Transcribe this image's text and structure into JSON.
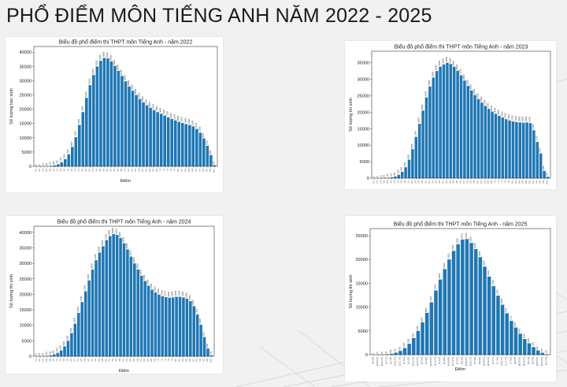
{
  "page": {
    "title": "PHỔ ĐIỂM MÔN TIẾNG ANH NĂM 2022 - 2025"
  },
  "colors": {
    "bar": "#1f77b4",
    "background": "#f1f1f1"
  },
  "chart_data": [
    {
      "type": "bar",
      "title": "Biểu đồ phổ điểm thi THPT môn Tiếng Anh - năm 2022",
      "xlabel": "Điểm",
      "ylabel": "Số lượng học sinh",
      "ylim": [
        0,
        42000
      ],
      "yticks": [
        0,
        5000,
        10000,
        15000,
        20000,
        25000,
        30000,
        35000,
        40000
      ],
      "grid": false,
      "categories": [
        "0.0",
        "0.2",
        "0.4",
        "0.6",
        "0.8",
        "1.0",
        "1.2",
        "1.4",
        "1.6",
        "1.8",
        "2.0",
        "2.2",
        "2.4",
        "2.6",
        "2.8",
        "3.0",
        "3.2",
        "3.4",
        "3.6",
        "3.8",
        "4.0",
        "4.2",
        "4.4",
        "4.6",
        "4.8",
        "5.0",
        "5.2",
        "5.4",
        "5.6",
        "5.8",
        "6.0",
        "6.2",
        "6.4",
        "6.6",
        "6.8",
        "7.0",
        "7.2",
        "7.4",
        "7.6",
        "7.8",
        "8.0",
        "8.2",
        "8.4",
        "8.6",
        "8.8",
        "9.0",
        "9.2",
        "9.4",
        "9.6",
        "9.8",
        "10.0"
      ],
      "values": [
        6,
        5,
        25,
        60,
        150,
        350,
        700,
        1400,
        2500,
        4200,
        6800,
        10200,
        14500,
        19000,
        24000,
        28500,
        32000,
        35000,
        37000,
        38000,
        37800,
        36800,
        35200,
        33500,
        31700,
        29800,
        28000,
        26500,
        25000,
        23600,
        22400,
        21400,
        20500,
        19700,
        19000,
        18400,
        17800,
        17200,
        16600,
        16100,
        15600,
        15200,
        14800,
        14500,
        14000,
        13100,
        11800,
        9800,
        7200,
        3900,
        400
      ]
    },
    {
      "type": "bar",
      "title": "Biểu đồ phổ điểm thi THPT môn Tiếng Anh - năm 2023",
      "xlabel": "Điểm",
      "ylabel": "Số lượng thí sinh",
      "ylim": [
        0,
        38500
      ],
      "yticks": [
        0,
        5000,
        10000,
        15000,
        20000,
        25000,
        30000,
        35000
      ],
      "grid": false,
      "categories": [
        "0.0",
        "0.2",
        "0.4",
        "0.6",
        "0.8",
        "1.0",
        "1.2",
        "1.4",
        "1.6",
        "1.8",
        "2.0",
        "2.2",
        "2.4",
        "2.6",
        "2.8",
        "3.0",
        "3.2",
        "3.4",
        "3.6",
        "3.8",
        "4.0",
        "4.2",
        "4.4",
        "4.6",
        "4.8",
        "5.0",
        "5.2",
        "5.4",
        "5.6",
        "5.8",
        "6.0",
        "6.2",
        "6.4",
        "6.6",
        "6.8",
        "7.0",
        "7.2",
        "7.4",
        "7.6",
        "7.8",
        "8.0",
        "8.2",
        "8.4",
        "8.6",
        "8.8",
        "9.0",
        "9.2",
        "9.4",
        "9.6",
        "9.8",
        "10.0"
      ],
      "values": [
        3,
        6,
        20,
        50,
        100,
        250,
        500,
        1000,
        1900,
        3300,
        5600,
        8800,
        12500,
        16500,
        20500,
        24500,
        27800,
        30500,
        32500,
        33800,
        34500,
        35000,
        34600,
        33800,
        32600,
        31200,
        29600,
        28000,
        26600,
        25200,
        24000,
        22900,
        21900,
        21000,
        20200,
        19500,
        18900,
        18400,
        17900,
        17500,
        17200,
        17000,
        16900,
        16800,
        16900,
        16700,
        14500,
        11000,
        7500,
        2200,
        400
      ]
    },
    {
      "type": "bar",
      "title": "Biểu đồ phổ điểm thi THPT môn Tiếng Anh - năm 2024",
      "xlabel": "Điểm",
      "ylabel": "Số lượng thí sinh",
      "ylim": [
        0,
        42000
      ],
      "yticks": [
        0,
        5000,
        10000,
        15000,
        20000,
        25000,
        30000,
        35000,
        40000
      ],
      "grid": false,
      "categories": [
        "0.0",
        "0.2",
        "0.4",
        "0.6",
        "0.8",
        "1.0",
        "1.2",
        "1.4",
        "1.6",
        "1.8",
        "2.0",
        "2.2",
        "2.4",
        "2.6",
        "2.8",
        "3.0",
        "3.2",
        "3.4",
        "3.6",
        "3.8",
        "4.0",
        "4.2",
        "4.4",
        "4.6",
        "4.8",
        "5.0",
        "5.2",
        "5.4",
        "5.6",
        "5.8",
        "6.0",
        "6.2",
        "6.4",
        "6.6",
        "6.8",
        "7.0",
        "7.2",
        "7.4",
        "7.6",
        "7.8",
        "8.0",
        "8.2",
        "8.4",
        "8.6",
        "8.8",
        "9.0",
        "9.2",
        "9.4",
        "9.6",
        "9.8",
        "10.0"
      ],
      "values": [
        15,
        30,
        80,
        150,
        300,
        600,
        1100,
        1900,
        3200,
        5000,
        7500,
        10500,
        14000,
        17500,
        21000,
        24500,
        28000,
        31000,
        33500,
        35500,
        37500,
        38800,
        39500,
        39200,
        38200,
        36500,
        34500,
        32200,
        30000,
        28000,
        26000,
        24300,
        22800,
        21500,
        20600,
        19900,
        19400,
        19100,
        18900,
        19000,
        19200,
        19200,
        19000,
        18600,
        17800,
        16200,
        13500,
        10200,
        6200,
        2500,
        300
      ]
    },
    {
      "type": "bar",
      "title": "Biểu đồ phổ điểm thi THPT môn Tiếng Anh - năm 2025",
      "xlabel": "Điểm",
      "ylabel": "Số lượng thí sinh",
      "ylim": [
        0,
        26500
      ],
      "yticks": [
        0,
        5000,
        10000,
        15000,
        20000,
        25000
      ],
      "grid": false,
      "categories": [
        "[0,0.25)",
        "[0.25,0.5)",
        "[0.5,0.75)",
        "[0.75,1)",
        "[1,1.25)",
        "[1.25,1.5)",
        "[1.5,1.75)",
        "[1.75,2)",
        "[2,2.25)",
        "[2.25,2.5)",
        "[2.5,2.75)",
        "[2.75,3)",
        "[3,3.25)",
        "[3.25,3.5)",
        "[3.5,3.75)",
        "[3.75,4)",
        "[4,4.25)",
        "[4.25,4.5)",
        "[4.5,4.75)",
        "[4.75,5)",
        "[5,5.25)",
        "[5.25,5.5)",
        "[5.5,5.75)",
        "[5.75,6)",
        "[6,6.25)",
        "[6.25,6.5)",
        "[6.5,6.75)",
        "[6.75,7)",
        "[7,7.25)",
        "[7.25,7.5)",
        "[7.5,7.75)",
        "[7.75,8)",
        "[8,8.25)",
        "[8.25,8.5)",
        "[8.5,8.75)",
        "[8.75,9)",
        "[9,9.25)",
        "[9.25,9.5)",
        "[9.5,9.75)",
        "[9.75,10]"
      ],
      "values": [
        5,
        15,
        40,
        90,
        200,
        420,
        800,
        1400,
        2300,
        3500,
        5000,
        6800,
        8800,
        11000,
        13500,
        15800,
        18000,
        20000,
        21800,
        23200,
        24200,
        24300,
        23500,
        22200,
        20500,
        18500,
        16400,
        14400,
        12400,
        10500,
        8700,
        7100,
        5700,
        4400,
        3300,
        2400,
        1600,
        900,
        400,
        100
      ]
    }
  ]
}
